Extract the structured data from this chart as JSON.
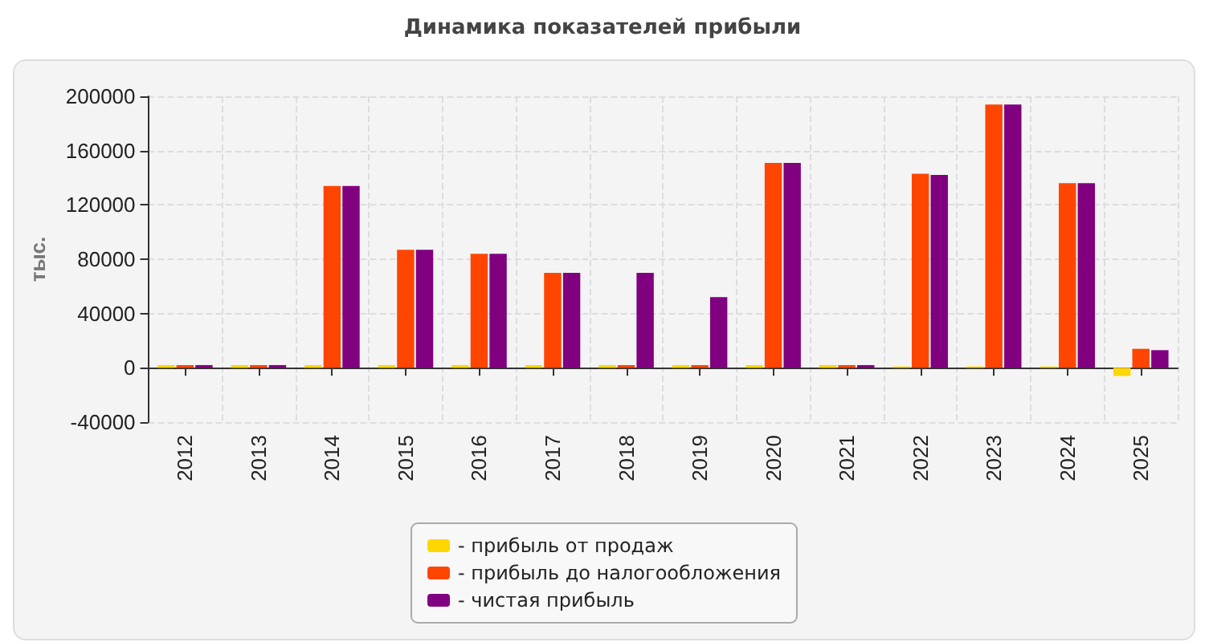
{
  "chart_data": {
    "type": "bar",
    "title": "Динамика показателей прибыли",
    "ylabel": "тыс.",
    "categories": [
      "2012",
      "2013",
      "2014",
      "2015",
      "2016",
      "2017",
      "2018",
      "2019",
      "2020",
      "2021",
      "2022",
      "2023",
      "2024",
      "2025"
    ],
    "series": [
      {
        "name": "- прибыль от продаж",
        "color": "#ffd700",
        "values": [
          2000,
          2000,
          2000,
          2000,
          2000,
          2000,
          2000,
          2000,
          2000,
          2000,
          1000,
          1000,
          1000,
          -6000
        ]
      },
      {
        "name": "- прибыль до налогообложения",
        "color": "#ff4500",
        "values": [
          2000,
          2000,
          134000,
          87000,
          84000,
          70000,
          2000,
          2000,
          151000,
          2000,
          143000,
          194000,
          136000,
          14000
        ]
      },
      {
        "name": "- чистая прибыль",
        "color": "#800080",
        "values": [
          2000,
          2000,
          134000,
          87000,
          84000,
          70000,
          70000,
          52000,
          151000,
          2000,
          142000,
          194000,
          136000,
          13000
        ]
      }
    ],
    "ylim": [
      -40000,
      200000
    ],
    "yticks": [
      -40000,
      0,
      40000,
      80000,
      120000,
      160000,
      200000
    ],
    "grid": true,
    "legend": "bottom"
  }
}
